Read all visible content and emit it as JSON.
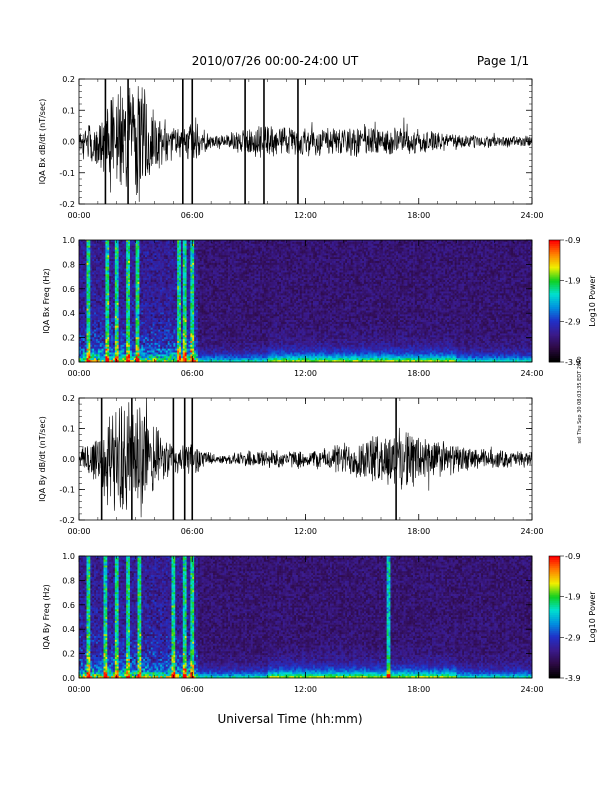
{
  "header": {
    "title": "2010/07/26  00:00-24:00 UT",
    "page": "Page 1/1"
  },
  "footer": {
    "xlabel": "Universal Time (hh:mm)",
    "side_note": "sel Thu Sep 30 08:03:35 EDT 2010"
  },
  "colors": {
    "trace": "#000000",
    "colormap": [
      "#000000",
      "#2e0a46",
      "#3a1a8c",
      "#2030c8",
      "#0090e0",
      "#00e0d0",
      "#10d020",
      "#f0f000",
      "#ff8000",
      "#ff0000"
    ]
  },
  "chart_data": [
    {
      "type": "line",
      "ylabel": "IQA Bx dB/dt (nT/sec)",
      "ylim": [
        -0.2,
        0.2
      ],
      "y_ticks": [
        "0.2",
        "0.1",
        "0.0",
        "-0.1",
        "-0.2"
      ],
      "x_ticks": [
        "00:00",
        "06:00",
        "12:00",
        "18:00",
        "24:00"
      ],
      "xlim_hours": [
        0,
        24
      ],
      "envelope": {
        "hours": [
          0,
          0.5,
          1,
          1.5,
          2,
          2.5,
          3,
          3.5,
          4,
          4.5,
          5,
          5.5,
          6,
          6.5,
          7,
          7.5,
          8,
          8.5,
          9,
          9.5,
          10,
          10.5,
          11,
          11.5,
          12,
          13,
          14,
          15,
          16,
          17,
          18,
          19,
          20,
          21,
          22,
          23,
          24
        ],
        "amplitude": [
          0.035,
          0.06,
          0.1,
          0.15,
          0.2,
          0.21,
          0.21,
          0.2,
          0.12,
          0.07,
          0.06,
          0.05,
          0.07,
          0.05,
          0.025,
          0.02,
          0.035,
          0.04,
          0.05,
          0.06,
          0.06,
          0.05,
          0.05,
          0.05,
          0.05,
          0.055,
          0.06,
          0.065,
          0.055,
          0.05,
          0.045,
          0.035,
          0.03,
          0.025,
          0.02,
          0.02,
          0.02
        ]
      },
      "spikes_hours": [
        1.4,
        2.6,
        5.5,
        6.0,
        8.8,
        9.8,
        11.6
      ]
    },
    {
      "type": "heatmap",
      "ylabel": "IQA Bx Freq (Hz)",
      "ylim": [
        0.0,
        1.0
      ],
      "y_ticks": [
        "1.0",
        "0.8",
        "0.6",
        "0.4",
        "0.2",
        "0.0"
      ],
      "x_ticks": [
        "00:00",
        "06:00",
        "12:00",
        "18:00",
        "24:00"
      ],
      "xlim_hours": [
        0,
        24
      ],
      "colorbar": {
        "label": "Log10 Power",
        "ticks": [
          "-0.9",
          "-1.9",
          "-2.9",
          "-3.9"
        ],
        "range": [
          -3.9,
          -0.9
        ]
      },
      "bright_lines_hours": [
        0.5,
        1.5,
        2.0,
        2.6,
        3.1,
        5.3,
        5.6,
        6.0
      ]
    },
    {
      "type": "line",
      "ylabel": "IQA By dB/dt (nT/sec)",
      "ylim": [
        -0.2,
        0.2
      ],
      "y_ticks": [
        "0.2",
        "0.1",
        "0.0",
        "-0.1",
        "-0.2"
      ],
      "x_ticks": [
        "00:00",
        "06:00",
        "12:00",
        "18:00",
        "24:00"
      ],
      "xlim_hours": [
        0,
        24
      ],
      "envelope": {
        "hours": [
          0,
          0.5,
          1,
          1.5,
          2,
          2.5,
          3,
          3.5,
          4,
          4.5,
          5,
          5.5,
          6,
          6.5,
          7,
          7.5,
          8,
          8.5,
          9,
          9.5,
          10,
          10.5,
          11,
          11.5,
          12,
          13,
          14,
          15,
          16,
          17,
          18,
          19,
          20,
          21,
          22,
          23,
          24
        ],
        "amplitude": [
          0.04,
          0.07,
          0.12,
          0.16,
          0.2,
          0.21,
          0.21,
          0.19,
          0.12,
          0.08,
          0.07,
          0.06,
          0.06,
          0.04,
          0.02,
          0.015,
          0.02,
          0.025,
          0.03,
          0.035,
          0.035,
          0.035,
          0.03,
          0.03,
          0.03,
          0.04,
          0.06,
          0.08,
          0.09,
          0.11,
          0.1,
          0.07,
          0.05,
          0.04,
          0.035,
          0.03,
          0.03
        ]
      },
      "spikes_hours": [
        1.2,
        2.8,
        5.0,
        5.6,
        6.0,
        16.8
      ]
    },
    {
      "type": "heatmap",
      "ylabel": "IQA By Freq (Hz)",
      "ylim": [
        0.0,
        1.0
      ],
      "y_ticks": [
        "1.0",
        "0.8",
        "0.6",
        "0.4",
        "0.2",
        "0.0"
      ],
      "x_ticks": [
        "00:00",
        "06:00",
        "12:00",
        "18:00",
        "24:00"
      ],
      "xlim_hours": [
        0,
        24
      ],
      "colorbar": {
        "label": "Log10 Power",
        "ticks": [
          "-0.9",
          "-1.9",
          "-2.9",
          "-3.9"
        ],
        "range": [
          -3.9,
          -0.9
        ]
      },
      "bright_lines_hours": [
        0.5,
        1.4,
        2.0,
        2.6,
        3.2,
        5.0,
        5.6,
        6.0,
        16.4
      ]
    }
  ]
}
